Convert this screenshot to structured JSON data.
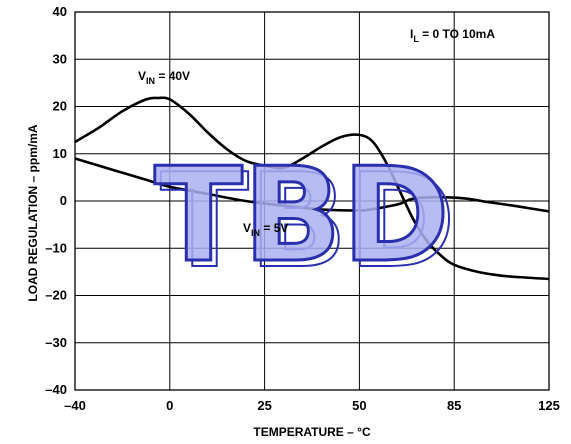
{
  "chart_data": {
    "type": "line",
    "xlabel": "TEMPERATURE – °C",
    "ylabel": "LOAD REGULATION – ppm/mA",
    "xlim": [
      -40,
      125
    ],
    "ylim": [
      -40,
      40
    ],
    "x_ticks": [
      "–40",
      "0",
      "25",
      "50",
      "85",
      "125"
    ],
    "x_tick_values": [
      -40,
      0,
      25,
      50,
      85,
      125
    ],
    "y_ticks": [
      "40",
      "30",
      "20",
      "10",
      "0",
      "–10",
      "–20",
      "–30",
      "–40"
    ],
    "y_tick_values": [
      40,
      30,
      20,
      10,
      0,
      -10,
      -20,
      -30,
      -40
    ],
    "grid": true,
    "annotations": {
      "il_prefix": "I",
      "il_sub": "L",
      "il_suffix": " = 0 TO 10mA",
      "vin_high_prefix": "V",
      "vin_high_sub": "IN",
      "vin_high_suffix": " = 40V",
      "vin_low_prefix": "V",
      "vin_low_sub": "IN",
      "vin_low_suffix": " = 5V"
    },
    "watermark": "TBD",
    "series": [
      {
        "x": [
          -40,
          -30,
          -20,
          -10,
          -5,
          0,
          5,
          10,
          15,
          20,
          25,
          30,
          35,
          40,
          45,
          50,
          55,
          60,
          65,
          70,
          75,
          80,
          85,
          95,
          105,
          115,
          125
        ],
        "values": [
          12.5,
          15.5,
          19,
          21.5,
          21.8,
          21.5,
          18.5,
          14.5,
          11,
          8.5,
          7.5,
          7,
          9,
          11.5,
          13.5,
          14,
          12.5,
          8,
          2,
          -4,
          -8.5,
          -11.5,
          -13.5,
          -15,
          -15.8,
          -16.2,
          -16.5
        ]
      },
      {
        "x": [
          -40,
          -30,
          -20,
          -10,
          0,
          10,
          20,
          30,
          40,
          50,
          55,
          60,
          65,
          70,
          80,
          90,
          100,
          110,
          125
        ],
        "values": [
          9,
          7.5,
          6,
          4.5,
          3,
          1.5,
          0,
          -1,
          -1.8,
          -2,
          -1.7,
          -1.2,
          -0.6,
          0.5,
          0.8,
          0.5,
          -0.3,
          -1,
          -2.2
        ]
      }
    ]
  }
}
